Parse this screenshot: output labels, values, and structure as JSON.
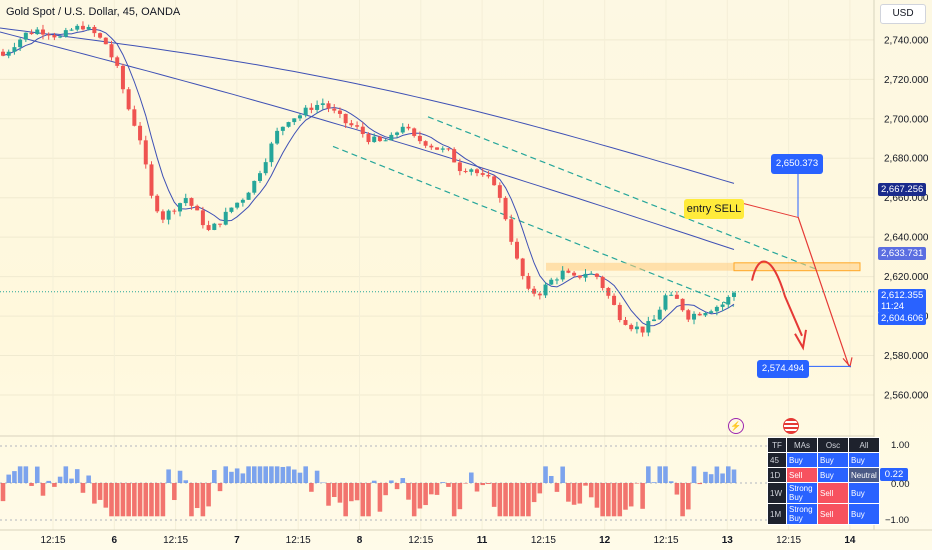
{
  "header": {
    "symbol_title": "Gold Spot / U.S. Dollar, 45, OANDA",
    "currency_button": "USD"
  },
  "price_axis": {
    "ticks": [
      "2,740.000",
      "2,720.000",
      "2,700.000",
      "2,680.000",
      "2,660.000",
      "2,640.000",
      "2,620.000",
      "2,600.000",
      "2,580.000",
      "2,560.000"
    ]
  },
  "time_axis": {
    "labels": [
      "12:15",
      "6",
      "12:15",
      "7",
      "12:15",
      "8",
      "12:15",
      "11",
      "12:15",
      "12",
      "12:15",
      "13",
      "12:15",
      "14"
    ]
  },
  "price_tags": {
    "ma_slow": "2,667.256",
    "ma_mid": "2,633.731",
    "last_price": "2,612.355",
    "countdown": "11:24",
    "ma_fast": "2,604.606"
  },
  "annotations": {
    "target_high": "2,650.373",
    "target_low": "2,574.494",
    "entry_label": "entry SELL"
  },
  "oscillator_axis": {
    "ticks": [
      "1.00",
      "0.00",
      "−1.00"
    ],
    "current": "0.22"
  },
  "tf_table": {
    "header": [
      "TF",
      "MAs",
      "Osc",
      "All"
    ],
    "rows": [
      {
        "tf": "45",
        "mas": "Buy",
        "osc": "Buy",
        "all": "Buy"
      },
      {
        "tf": "1D",
        "mas": "Sell",
        "osc": "Buy",
        "all": "Neutral"
      },
      {
        "tf": "1W",
        "mas": "Strong Buy",
        "osc": "Sell",
        "all": "Buy"
      },
      {
        "tf": "1M",
        "mas": "Strong Buy",
        "osc": "Sell",
        "all": "Buy"
      }
    ]
  },
  "colors": {
    "up": "#26a69a",
    "down": "#ef5350",
    "ma": "#3f51b5",
    "accent": "#2962ff",
    "osc_pos": "#5b8def",
    "osc_neg": "#ef5350"
  },
  "chart_data": {
    "type": "candlestick",
    "title": "Gold Spot / U.S. Dollar, 45, OANDA",
    "ylim": [
      2550,
      2750
    ],
    "close_path": [
      2732,
      2738,
      2743,
      2745,
      2744,
      2741,
      2745,
      2747,
      2743,
      2738,
      2725,
      2705,
      2690,
      2660,
      2650,
      2655,
      2660,
      2652,
      2643,
      2648,
      2655,
      2660,
      2668,
      2680,
      2693,
      2700,
      2702,
      2706,
      2708,
      2703,
      2698,
      2695,
      2690,
      2688,
      2690,
      2697,
      2690,
      2688,
      2685,
      2683,
      2675,
      2675,
      2670,
      2668,
      2650,
      2628,
      2612,
      2612,
      2618,
      2622,
      2619,
      2622,
      2620,
      2610,
      2600,
      2595,
      2593,
      2598,
      2610,
      2608,
      2600,
      2602,
      2604,
      2606,
      2612
    ],
    "levels": {
      "target_high": 2650.373,
      "target_low": 2574.494,
      "entry_zone": [
        2623,
        2627
      ]
    },
    "moving_averages": [
      {
        "name": "fast",
        "last": 2604.606
      },
      {
        "name": "mid",
        "last": 2633.731
      },
      {
        "name": "slow",
        "last": 2667.256
      }
    ],
    "last_price": 2612.355
  }
}
